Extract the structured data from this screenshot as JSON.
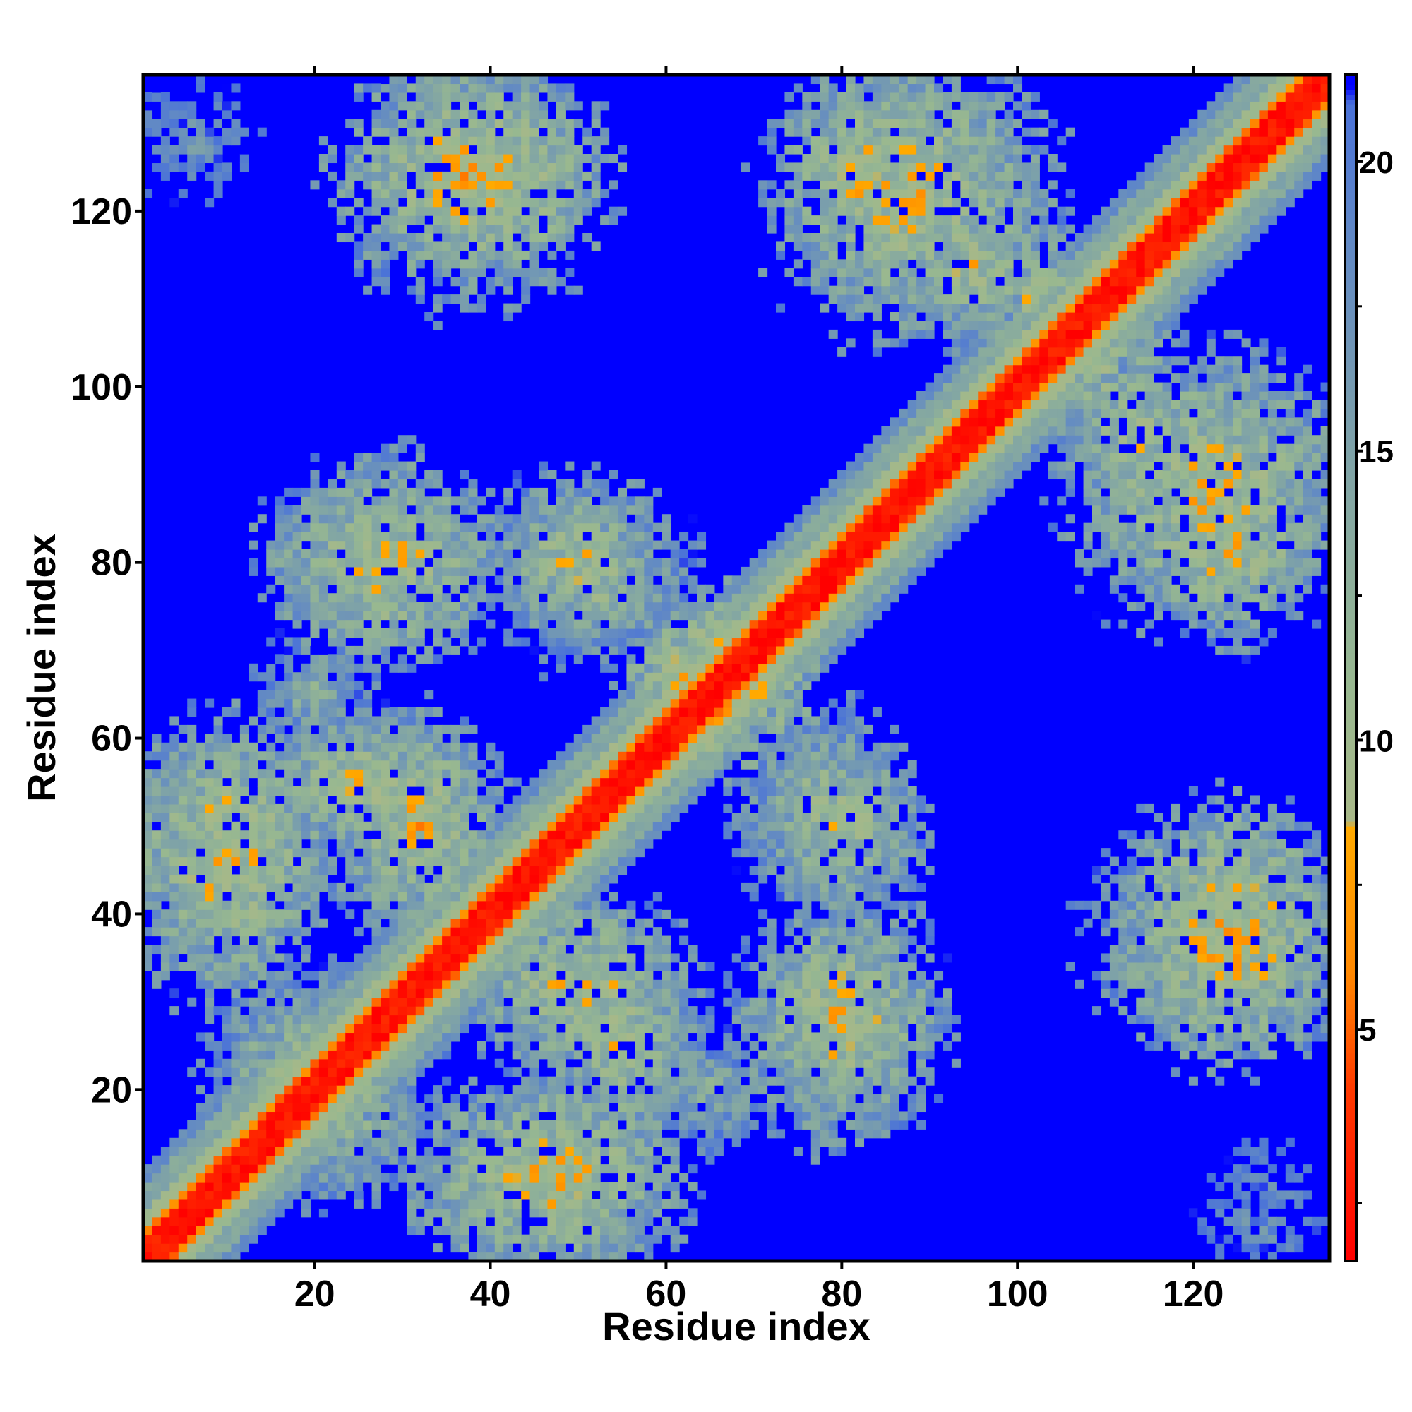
{
  "chart_data": {
    "type": "heatmap",
    "title": "",
    "xlabel": "Residue index",
    "ylabel": "Residue index",
    "n_residues": 135,
    "xlim": [
      1,
      135
    ],
    "ylim": [
      1,
      135
    ],
    "x_ticks": [
      20,
      40,
      60,
      80,
      100,
      120
    ],
    "y_ticks": [
      20,
      40,
      60,
      80,
      100,
      120
    ],
    "colorbar": {
      "range": [
        1,
        21.5
      ],
      "ticks": [
        5,
        10,
        15,
        20
      ],
      "stops": [
        {
          "value": 1,
          "color": "#ff0000"
        },
        {
          "value": 4,
          "color": "#ff3a00"
        },
        {
          "value": 6,
          "color": "#ff8800"
        },
        {
          "value": 8.5,
          "color": "#ffaa00"
        },
        {
          "value": 8.6,
          "color": "#a8b888"
        },
        {
          "value": 11,
          "color": "#98b890"
        },
        {
          "value": 15,
          "color": "#7ea2a8"
        },
        {
          "value": 19,
          "color": "#5e86c8"
        },
        {
          "value": 21,
          "color": "#4a72d8"
        },
        {
          "value": 21.3,
          "color": "#0000ff"
        }
      ]
    },
    "background_value": 21.5,
    "diagonal_bands": [
      {
        "max_offset": 2,
        "value": 2
      },
      {
        "max_offset": 3,
        "value": 6
      },
      {
        "max_offset": 5,
        "value": 10
      },
      {
        "max_offset": 8,
        "value": 14
      },
      {
        "max_offset": 10,
        "value": 18
      }
    ],
    "contact_clusters": [
      {
        "x": 6,
        "y": 128,
        "rx": 10,
        "ry": 9,
        "core": 17
      },
      {
        "x": 38,
        "y": 124,
        "rx": 14,
        "ry": 15,
        "core": 10
      },
      {
        "x": 28,
        "y": 80,
        "rx": 14,
        "ry": 11,
        "core": 9
      },
      {
        "x": 52,
        "y": 78,
        "rx": 12,
        "ry": 10,
        "core": 11
      },
      {
        "x": 10,
        "y": 48,
        "rx": 13,
        "ry": 14,
        "core": 9
      },
      {
        "x": 26,
        "y": 55,
        "rx": 15,
        "ry": 9,
        "core": 10
      },
      {
        "x": 38,
        "y": 38,
        "rx": 9,
        "ry": 9,
        "core": 10
      },
      {
        "x": 50,
        "y": 32,
        "rx": 13,
        "ry": 10,
        "core": 9
      },
      {
        "x": 22,
        "y": 18,
        "rx": 12,
        "ry": 11,
        "core": 11
      },
      {
        "x": 46,
        "y": 10,
        "rx": 16,
        "ry": 11,
        "core": 9
      },
      {
        "x": 65,
        "y": 20,
        "rx": 8,
        "ry": 7,
        "core": 13
      },
      {
        "x": 80,
        "y": 28,
        "rx": 12,
        "ry": 11,
        "core": 9
      },
      {
        "x": 66,
        "y": 66,
        "rx": 9,
        "ry": 10,
        "core": 7
      },
      {
        "x": 80,
        "y": 50,
        "rx": 10,
        "ry": 11,
        "core": 10
      },
      {
        "x": 88,
        "y": 122,
        "rx": 16,
        "ry": 16,
        "core": 9
      },
      {
        "x": 102,
        "y": 110,
        "rx": 10,
        "ry": 10,
        "core": 11
      },
      {
        "x": 114,
        "y": 95,
        "rx": 10,
        "ry": 9,
        "core": 10
      },
      {
        "x": 124,
        "y": 82,
        "rx": 12,
        "ry": 10,
        "core": 9
      },
      {
        "x": 124,
        "y": 38,
        "rx": 12,
        "ry": 15,
        "core": 8
      },
      {
        "x": 128,
        "y": 6,
        "rx": 9,
        "ry": 8,
        "core": 17
      }
    ]
  }
}
